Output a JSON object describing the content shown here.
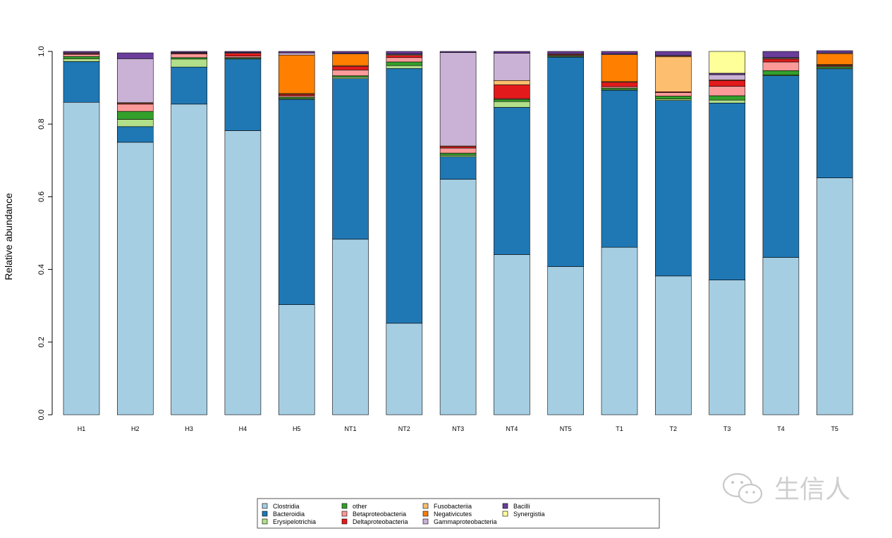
{
  "chart_data": {
    "type": "bar",
    "stacked": true,
    "ylabel": "Relative abundance",
    "xlabel": "",
    "ylim": [
      0,
      1
    ],
    "yticks": [
      "0.0",
      "0.2",
      "0.4",
      "0.6",
      "0.8",
      "1.0"
    ],
    "grid": false,
    "legend_position": "bottom-center",
    "categories": [
      "H1",
      "H2",
      "H3",
      "H4",
      "H5",
      "NT1",
      "NT2",
      "NT3",
      "NT4",
      "NT5",
      "T1",
      "T2",
      "T3",
      "T4",
      "T5"
    ],
    "series": [
      {
        "name": "Clostridia",
        "color": "#a6cee3",
        "values": [
          0.86,
          0.75,
          0.855,
          0.782,
          0.303,
          0.483,
          0.252,
          0.648,
          0.441,
          0.408,
          0.461,
          0.382,
          0.371,
          0.433,
          0.652
        ]
      },
      {
        "name": "Bacteroidia",
        "color": "#1f78b4",
        "values": [
          0.112,
          0.043,
          0.102,
          0.197,
          0.565,
          0.442,
          0.701,
          0.062,
          0.405,
          0.576,
          0.432,
          0.483,
          0.487,
          0.5,
          0.3
        ]
      },
      {
        "name": "Erysipelotrichia",
        "color": "#b2df8a",
        "values": [
          0.008,
          0.02,
          0.022,
          0.002,
          0.002,
          0.004,
          0.008,
          0.004,
          0.016,
          0.002,
          0.002,
          0.004,
          0.008,
          0.002,
          0.002
        ]
      },
      {
        "name": "other",
        "color": "#33a02c",
        "values": [
          0.006,
          0.022,
          0.004,
          0.002,
          0.004,
          0.004,
          0.01,
          0.006,
          0.006,
          0.002,
          0.004,
          0.008,
          0.012,
          0.012,
          0.004
        ]
      },
      {
        "name": "Betaproteobacteria",
        "color": "#fb9a99",
        "values": [
          0.006,
          0.02,
          0.01,
          0.004,
          0.004,
          0.016,
          0.012,
          0.014,
          0.002,
          0.002,
          0.004,
          0.01,
          0.026,
          0.024,
          0.002
        ]
      },
      {
        "name": "Deltaproteobacteria",
        "color": "#e31a1c",
        "values": [
          0.002,
          0.002,
          0.002,
          0.008,
          0.004,
          0.01,
          0.006,
          0.004,
          0.038,
          0.002,
          0.012,
          0.002,
          0.016,
          0.008,
          0.002
        ]
      },
      {
        "name": "Fusobacteriia",
        "color": "#fdbf6f",
        "values": [
          0.0,
          0.002,
          0.0,
          0.0,
          0.002,
          0.002,
          0.002,
          0.002,
          0.012,
          0.0,
          0.002,
          0.096,
          0.002,
          0.002,
          0.002
        ]
      },
      {
        "name": "Negativicutes",
        "color": "#ff7f00",
        "values": [
          0.0,
          0.0,
          0.0,
          0.0,
          0.106,
          0.032,
          0.0,
          0.0,
          0.0,
          0.0,
          0.074,
          0.002,
          0.0,
          0.0,
          0.03
        ]
      },
      {
        "name": "Gammaproteobacteria",
        "color": "#cab2d6",
        "values": [
          0.002,
          0.121,
          0.002,
          0.002,
          0.006,
          0.002,
          0.002,
          0.257,
          0.075,
          0.002,
          0.002,
          0.002,
          0.014,
          0.002,
          0.002
        ]
      },
      {
        "name": "Bacilli",
        "color": "#6a3d9a",
        "values": [
          0.004,
          0.016,
          0.003,
          0.003,
          0.004,
          0.005,
          0.007,
          0.003,
          0.005,
          0.006,
          0.007,
          0.011,
          0.004,
          0.017,
          0.006
        ]
      },
      {
        "name": "Synergistia",
        "color": "#ffff99",
        "values": [
          0.0,
          0.0,
          0.0,
          0.0,
          0.0,
          0.0,
          0.0,
          0.0,
          0.0,
          0.0,
          0.0,
          0.0,
          0.06,
          0.0,
          0.0
        ]
      }
    ]
  },
  "watermark": {
    "text": "生信人",
    "icon": "wechat-icon"
  }
}
